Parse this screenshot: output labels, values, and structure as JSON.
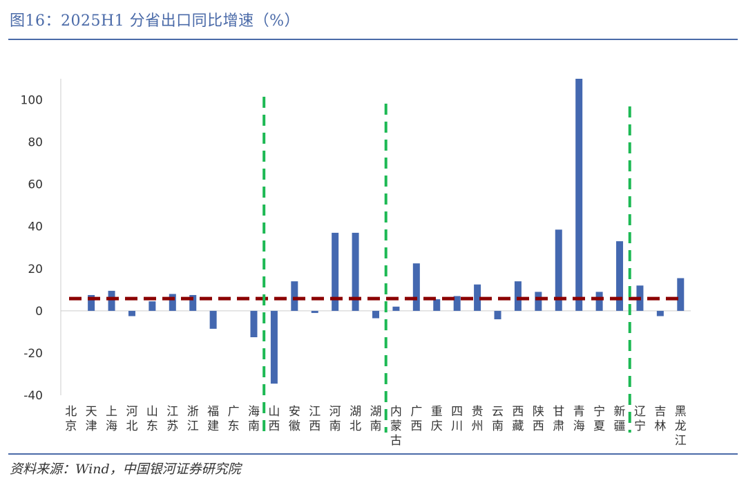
{
  "title": "图16：2025H1 分省出口同比增速（%）",
  "source": "资料来源：Wind，中国银河证券研究院",
  "chart_data": {
    "type": "bar",
    "title": "图16：2025H1 分省出口同比增速（%）",
    "xlabel": "",
    "ylabel": "",
    "ylim": [
      -40,
      110
    ],
    "yticks": [
      100,
      80,
      60,
      40,
      20,
      0,
      -20,
      -40
    ],
    "grid": false,
    "categories": [
      "北京",
      "天津",
      "上海",
      "河北",
      "山东",
      "江苏",
      "浙江",
      "福建",
      "广东",
      "海南",
      "山西",
      "安徽",
      "江西",
      "河南",
      "湖北",
      "湖南",
      "内蒙古",
      "广西",
      "重庆",
      "四川",
      "贵州",
      "云南",
      "西藏",
      "陕西",
      "甘肃",
      "青海",
      "宁夏",
      "新疆",
      "辽宁",
      "吉林",
      "黑龙江"
    ],
    "values": [
      0,
      7.5,
      9.5,
      -2.5,
      4.5,
      8,
      7.5,
      -8.5,
      0,
      -12.5,
      -34.5,
      14,
      -1,
      37,
      37,
      -3.5,
      2,
      22.5,
      5.5,
      7,
      12.5,
      -4,
      14,
      9,
      38.5,
      110,
      9,
      33,
      12,
      -2.5,
      15.5
    ],
    "average_line": 5.8,
    "highlight_after": [
      "海南",
      "湖南",
      "新疆"
    ],
    "colors": {
      "bars": "#4468b0",
      "average": "#8b0000",
      "divider": "#1db954"
    }
  }
}
